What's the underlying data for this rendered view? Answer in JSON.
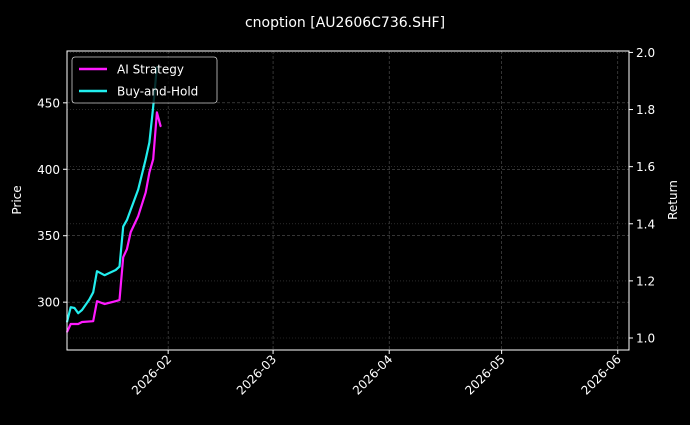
{
  "chart_data": {
    "type": "line",
    "title": "cnoption [AU2606C736.SHF]",
    "ylabel": "Price",
    "y2label": "Return",
    "xlim": [
      "2026-01-05",
      "2026-06-04"
    ],
    "ylim": [
      264,
      489
    ],
    "y2lim": [
      0.958,
      2.005
    ],
    "xticks": [
      "2026-02",
      "2026-03",
      "2026-04",
      "2026-05",
      "2026-06"
    ],
    "xtick_dates": [
      "2026-02-01",
      "2026-03-01",
      "2026-04-01",
      "2026-05-01",
      "2026-06-01"
    ],
    "yticks": [
      300,
      350,
      400,
      450
    ],
    "y2ticks": [
      "1.0",
      "1.2",
      "1.4",
      "1.6",
      "1.8",
      "2.0"
    ],
    "grid": true,
    "legend": "top-left",
    "background": "#000000",
    "series": [
      {
        "name": "AI Strategy",
        "axis": "right",
        "color": "#ff1aff",
        "x": [
          "2026-01-05",
          "2026-01-06",
          "2026-01-08",
          "2026-01-09",
          "2026-01-12",
          "2026-01-13",
          "2026-01-15",
          "2026-01-18",
          "2026-01-19",
          "2026-01-20",
          "2026-01-21",
          "2026-01-22",
          "2026-01-24",
          "2026-01-26",
          "2026-01-27",
          "2026-01-28",
          "2026-01-29",
          "2026-01-30"
        ],
        "y": [
          1.021,
          1.049,
          1.049,
          1.056,
          1.059,
          1.129,
          1.119,
          1.129,
          1.133,
          1.283,
          1.311,
          1.371,
          1.427,
          1.51,
          1.58,
          1.626,
          1.79,
          1.741
        ]
      },
      {
        "name": "Buy-and-Hold",
        "axis": "right",
        "color": "#22eeee",
        "x": [
          "2026-01-05",
          "2026-01-06",
          "2026-01-07",
          "2026-01-08",
          "2026-01-09",
          "2026-01-11",
          "2026-01-12",
          "2026-01-13",
          "2026-01-15",
          "2026-01-18",
          "2026-01-19",
          "2026-01-20",
          "2026-01-21",
          "2026-01-24",
          "2026-01-26",
          "2026-01-27",
          "2026-01-28",
          "2026-01-29"
        ],
        "y": [
          1.056,
          1.108,
          1.105,
          1.087,
          1.098,
          1.136,
          1.16,
          1.234,
          1.22,
          1.238,
          1.25,
          1.39,
          1.413,
          1.52,
          1.626,
          1.685,
          1.81,
          1.95
        ]
      }
    ]
  }
}
